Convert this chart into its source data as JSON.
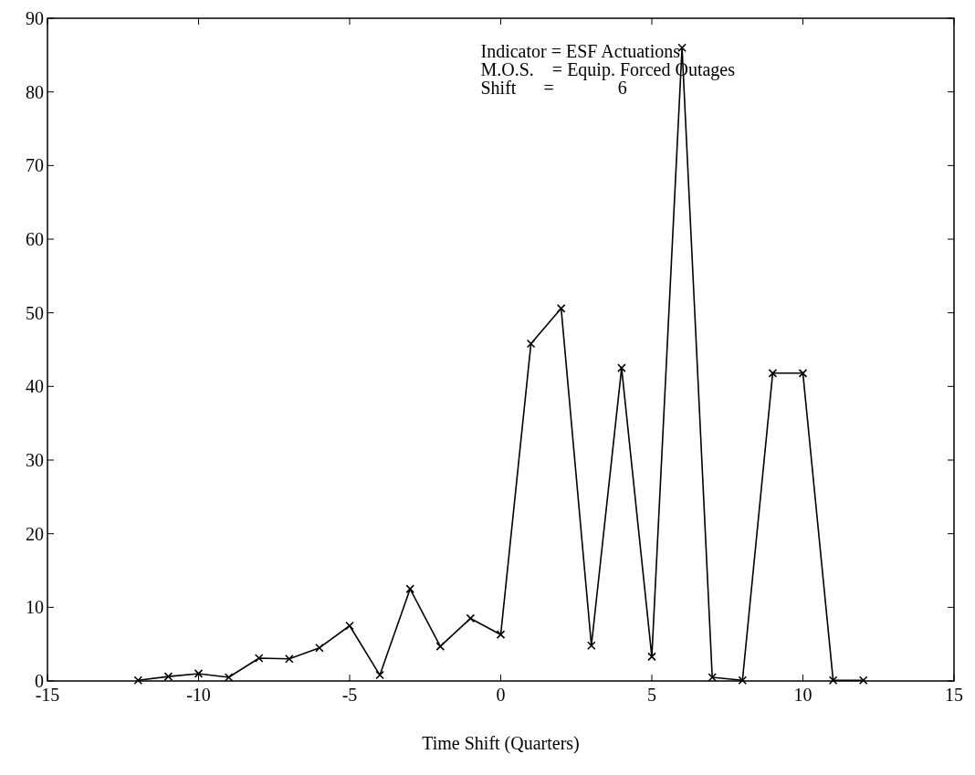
{
  "chart_data": {
    "type": "line",
    "xlabel": "Time Shift (Quarters)",
    "annotations": [
      "Indicator = ESF Actuations",
      "M.O.S.    = Equip. Forced Outages",
      "Shift      =              6"
    ],
    "x": [
      -12,
      -11,
      -10,
      -9,
      -8,
      -7,
      -6,
      -5,
      -4,
      -3,
      -2,
      -1,
      0,
      1,
      2,
      3,
      4,
      5,
      6,
      7,
      8,
      9,
      10,
      11,
      12
    ],
    "series": [
      {
        "color": "#000000",
        "values": [
          0.1,
          0.6,
          1.0,
          0.5,
          3.1,
          3.0,
          4.5,
          7.5,
          0.8,
          12.5,
          4.7,
          8.5,
          6.3,
          45.8,
          50.6,
          4.8,
          42.5,
          3.3,
          86,
          0.5,
          0.1,
          41.8,
          41.8,
          0.1,
          0.1
        ]
      }
    ],
    "xlim": [
      -15,
      15
    ],
    "xticks": [
      -15,
      -10,
      -5,
      0,
      5,
      10,
      15
    ],
    "ylim": [
      0,
      90
    ],
    "yticks": [
      0,
      10,
      20,
      30,
      40,
      50,
      60,
      70,
      80,
      90
    ],
    "marker": "cross",
    "line_style": "solid"
  }
}
